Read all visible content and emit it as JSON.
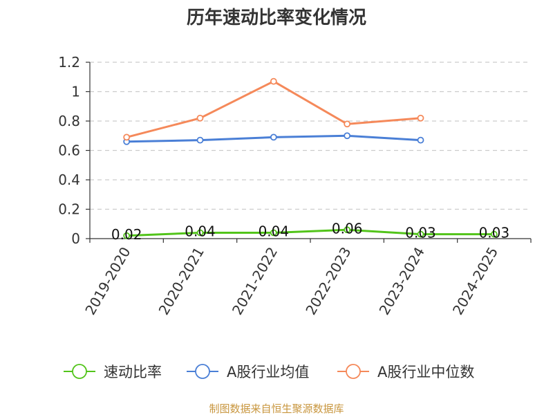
{
  "chart_data": {
    "type": "line",
    "title": "历年速动比率变化情况",
    "categories": [
      "2019-2020",
      "2020-2021",
      "2021-2022",
      "2022-2023",
      "2023-2024",
      "2024-2025"
    ],
    "ylim": [
      0,
      1.2
    ],
    "yticks": [
      0,
      0.2,
      0.4,
      0.6,
      0.8,
      1,
      1.2
    ],
    "ytick_labels": [
      "0",
      "0.2",
      "0.4",
      "0.6",
      "0.8",
      "1",
      "1.2"
    ],
    "grid": true,
    "legend_position": "bottom",
    "series": [
      {
        "name": "速动比率",
        "color": "#52c41a",
        "values": [
          0.02,
          0.04,
          0.04,
          0.06,
          0.03,
          0.03
        ],
        "data_labels": [
          "0.02",
          "0.04",
          "0.04",
          "0.06",
          "0.03",
          "0.03"
        ]
      },
      {
        "name": "A股行业均值",
        "color": "#4a7fd6",
        "values": [
          0.66,
          0.67,
          0.69,
          0.7,
          0.67,
          null
        ]
      },
      {
        "name": "A股行业中位数",
        "color": "#f5895a",
        "values": [
          0.69,
          0.82,
          1.07,
          0.78,
          0.82,
          null
        ]
      }
    ],
    "source": "制图数据来自恒生聚源数据库"
  }
}
